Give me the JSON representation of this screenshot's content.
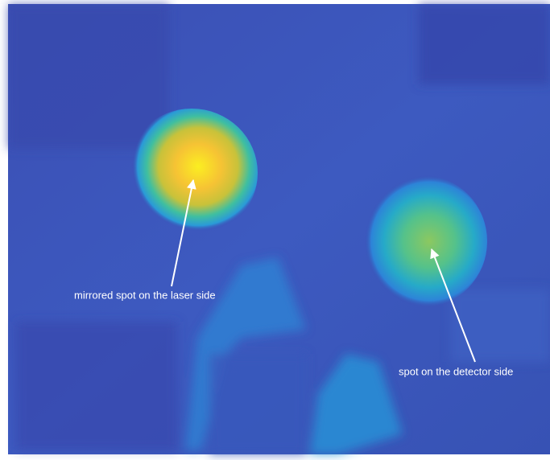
{
  "annotations": [
    {
      "text": "mirrored spot on the laser side"
    },
    {
      "text": "spot on the detector side"
    }
  ]
}
